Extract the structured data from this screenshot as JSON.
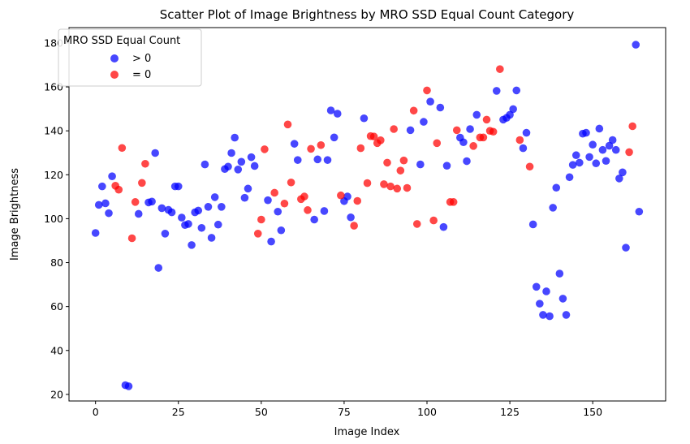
{
  "chart_data": {
    "type": "scatter",
    "title": "Scatter Plot of Image Brightness by MRO SSD Equal Count Category",
    "xlabel": "Image Index",
    "ylabel": "Image Brightness",
    "xlim": [
      -8,
      172
    ],
    "ylim": [
      17,
      187
    ],
    "xticks": [
      0,
      25,
      50,
      75,
      100,
      125,
      150
    ],
    "yticks": [
      20,
      40,
      60,
      80,
      100,
      120,
      140,
      160,
      180
    ],
    "grid": false,
    "legend": {
      "title": "MRO SSD Equal Count",
      "position": "top-left",
      "entries": [
        {
          "label": "> 0",
          "color": "#0000ff"
        },
        {
          "label": "= 0",
          "color": "#ff0000"
        }
      ]
    },
    "series": [
      {
        "name": "> 0",
        "color": "#0000ff",
        "points": [
          [
            0,
            93.5
          ],
          [
            1,
            106.3
          ],
          [
            2,
            114.7
          ],
          [
            3,
            107.0
          ],
          [
            4,
            102.5
          ],
          [
            5,
            119.3
          ],
          [
            9,
            24.2
          ],
          [
            10,
            23.7
          ],
          [
            13,
            102.2
          ],
          [
            16,
            107.4
          ],
          [
            17,
            107.8
          ],
          [
            18,
            129.9
          ],
          [
            19,
            77.6
          ],
          [
            20,
            104.8
          ],
          [
            21,
            93.2
          ],
          [
            22,
            104.0
          ],
          [
            23,
            102.9
          ],
          [
            24,
            114.7
          ],
          [
            25,
            114.7
          ],
          [
            26,
            100.5
          ],
          [
            27,
            97.1
          ],
          [
            28,
            97.6
          ],
          [
            29,
            88.0
          ],
          [
            30,
            102.9
          ],
          [
            31,
            103.7
          ],
          [
            32,
            95.8
          ],
          [
            33,
            124.7
          ],
          [
            34,
            105.4
          ],
          [
            35,
            91.3
          ],
          [
            36,
            109.8
          ],
          [
            37,
            97.3
          ],
          [
            38,
            105.4
          ],
          [
            39,
            122.6
          ],
          [
            40,
            123.7
          ],
          [
            41,
            129.9
          ],
          [
            42,
            136.9
          ],
          [
            43,
            122.4
          ],
          [
            44,
            125.9
          ],
          [
            45,
            109.5
          ],
          [
            46,
            113.7
          ],
          [
            47,
            128.0
          ],
          [
            48,
            124.0
          ],
          [
            52,
            108.4
          ],
          [
            53,
            89.6
          ],
          [
            55,
            103.2
          ],
          [
            56,
            94.7
          ],
          [
            60,
            134.1
          ],
          [
            61,
            126.7
          ],
          [
            66,
            99.6
          ],
          [
            67,
            127.0
          ],
          [
            69,
            103.5
          ],
          [
            70,
            126.7
          ],
          [
            71,
            149.3
          ],
          [
            72,
            137.0
          ],
          [
            73,
            147.8
          ],
          [
            75,
            108.0
          ],
          [
            76,
            110.1
          ],
          [
            77,
            100.6
          ],
          [
            81,
            145.7
          ],
          [
            95,
            140.3
          ],
          [
            99,
            144.1
          ],
          [
            98,
            124.7
          ],
          [
            101,
            153.3
          ],
          [
            104,
            150.6
          ],
          [
            105,
            96.2
          ],
          [
            106,
            124.1
          ],
          [
            110,
            136.9
          ],
          [
            111,
            134.8
          ],
          [
            112,
            126.2
          ],
          [
            113,
            140.8
          ],
          [
            115,
            147.3
          ],
          [
            121,
            158.2
          ],
          [
            123,
            145.1
          ],
          [
            124,
            145.9
          ],
          [
            125,
            147.3
          ],
          [
            126,
            149.9
          ],
          [
            127,
            158.4
          ],
          [
            129,
            132.1
          ],
          [
            130,
            139.1
          ],
          [
            132,
            97.4
          ],
          [
            133,
            69.0
          ],
          [
            134,
            61.3
          ],
          [
            135,
            56.2
          ],
          [
            136,
            66.9
          ],
          [
            137,
            55.6
          ],
          [
            138,
            105.0
          ],
          [
            139,
            114.1
          ],
          [
            140,
            75.0
          ],
          [
            141,
            63.6
          ],
          [
            142,
            56.2
          ],
          [
            143,
            118.9
          ],
          [
            144,
            124.5
          ],
          [
            145,
            128.9
          ],
          [
            146,
            125.5
          ],
          [
            147,
            138.7
          ],
          [
            148,
            139.1
          ],
          [
            149,
            128.1
          ],
          [
            150,
            133.7
          ],
          [
            151,
            125.2
          ],
          [
            152,
            141.0
          ],
          [
            153,
            131.3
          ],
          [
            154,
            126.3
          ],
          [
            155,
            133.2
          ],
          [
            156,
            135.8
          ],
          [
            157,
            131.3
          ],
          [
            158,
            118.3
          ],
          [
            159,
            121.1
          ],
          [
            160,
            86.8
          ],
          [
            163,
            179.2
          ],
          [
            164,
            103.2
          ]
        ]
      },
      {
        "name": "= 0",
        "color": "#ff0000",
        "points": [
          [
            6,
            115.0
          ],
          [
            7,
            113.2
          ],
          [
            8,
            132.2
          ],
          [
            11,
            91.1
          ],
          [
            12,
            107.6
          ],
          [
            14,
            116.3
          ],
          [
            15,
            125.0
          ],
          [
            49,
            93.2
          ],
          [
            50,
            99.6
          ],
          [
            51,
            131.6
          ],
          [
            54,
            111.8
          ],
          [
            57,
            106.9
          ],
          [
            58,
            142.9
          ],
          [
            59,
            116.5
          ],
          [
            62,
            108.9
          ],
          [
            63,
            110.1
          ],
          [
            64,
            103.9
          ],
          [
            65,
            131.8
          ],
          [
            68,
            133.5
          ],
          [
            74,
            110.6
          ],
          [
            78,
            96.8
          ],
          [
            79,
            108.1
          ],
          [
            80,
            132.1
          ],
          [
            82,
            116.2
          ],
          [
            83,
            137.6
          ],
          [
            84,
            137.4
          ],
          [
            85,
            134.4
          ],
          [
            86,
            135.7
          ],
          [
            87,
            115.7
          ],
          [
            88,
            125.5
          ],
          [
            89,
            114.7
          ],
          [
            90,
            140.8
          ],
          [
            91,
            113.7
          ],
          [
            92,
            121.9
          ],
          [
            93,
            126.5
          ],
          [
            94,
            114.0
          ],
          [
            96,
            149.2
          ],
          [
            97,
            97.6
          ],
          [
            100,
            158.4
          ],
          [
            102,
            99.2
          ],
          [
            103,
            134.4
          ],
          [
            107,
            107.6
          ],
          [
            108,
            107.6
          ],
          [
            109,
            140.3
          ],
          [
            114,
            133.1
          ],
          [
            116,
            137.0
          ],
          [
            117,
            137.0
          ],
          [
            118,
            145.1
          ],
          [
            119,
            140.0
          ],
          [
            120,
            139.6
          ],
          [
            122,
            168.1
          ],
          [
            128,
            135.8
          ],
          [
            131,
            123.7
          ],
          [
            161,
            130.3
          ],
          [
            162,
            142.1
          ]
        ]
      }
    ]
  }
}
